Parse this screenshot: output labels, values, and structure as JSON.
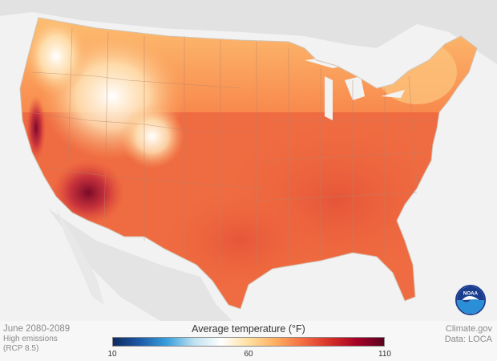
{
  "map": {
    "region": "Contiguous United States",
    "variable": "Average temperature",
    "color_scale": [
      "#0d2a5e",
      "#1e5aa8",
      "#3aa0dc",
      "#bfe2f0",
      "#ffffff",
      "#ffe0a0",
      "#fdae61",
      "#f46d43",
      "#d73027",
      "#a50026",
      "#5a0020"
    ]
  },
  "caption": {
    "period": "June 2080-2089",
    "scenario_line1": "High emissions",
    "scenario_line2": "(RCP 8.5)",
    "source": "Climate.gov",
    "data": "Data: LOCA"
  },
  "legend": {
    "title": "Average temperature",
    "units": "(°F)",
    "ticks": [
      "10",
      "60",
      "110"
    ],
    "min": 10,
    "max": 110
  },
  "logo": {
    "name": "noaa-logo",
    "text": "NOAA"
  }
}
